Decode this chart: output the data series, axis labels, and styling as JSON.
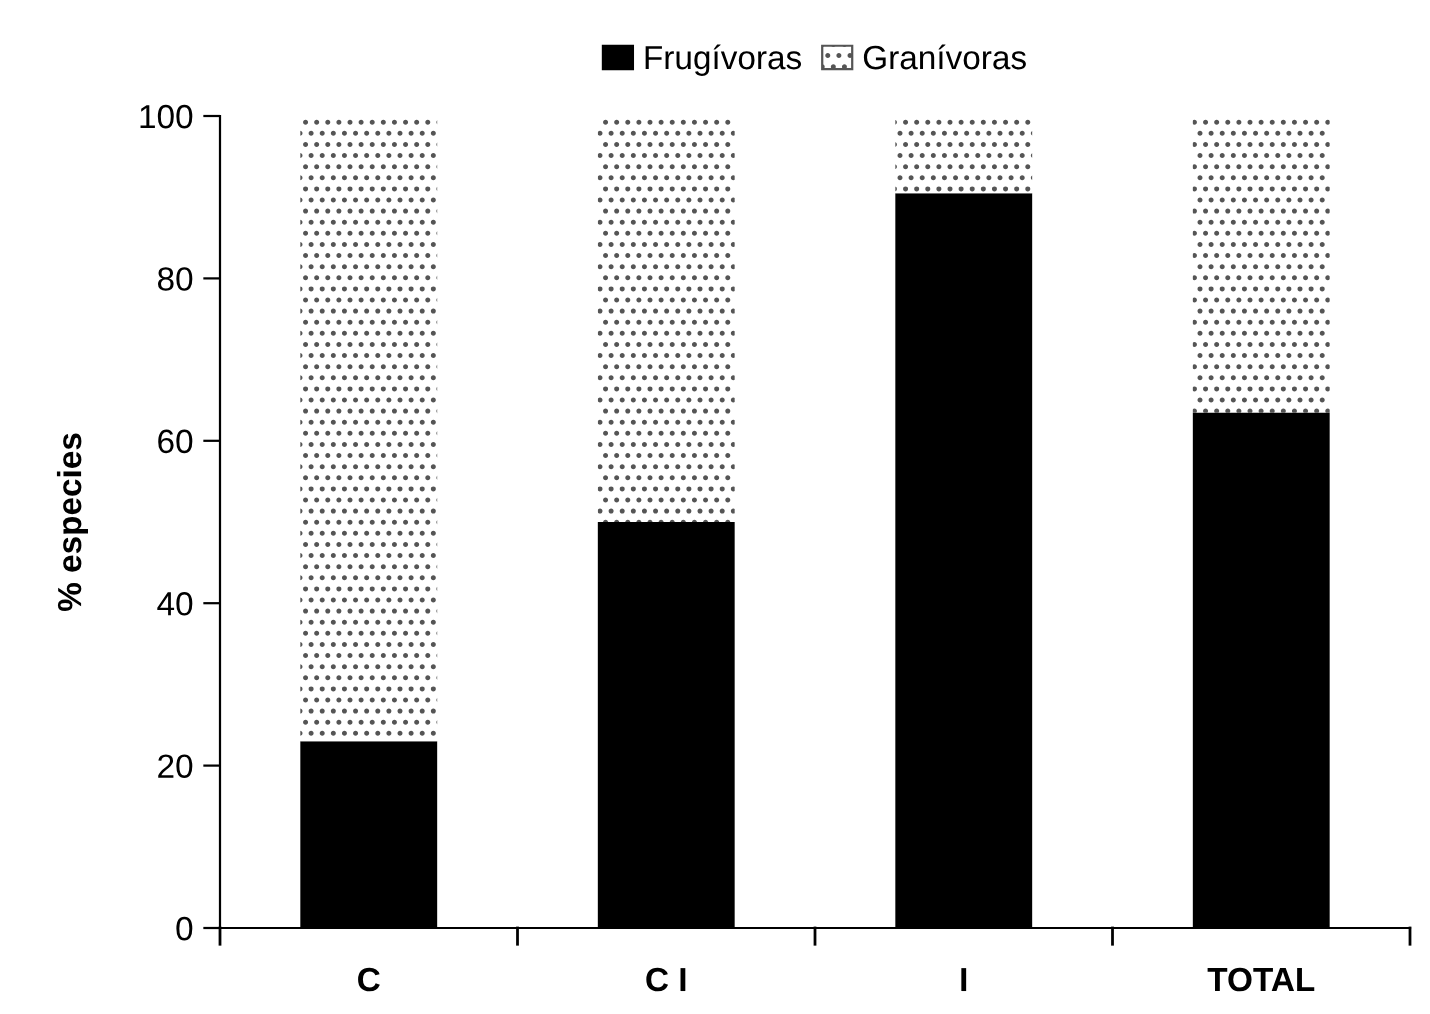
{
  "chart_data": {
    "type": "bar",
    "stacked": true,
    "ylabel": "% especies",
    "categories": [
      "C",
      "C I",
      "I",
      "TOTAL"
    ],
    "series": [
      {
        "name": "Frugívoras",
        "color": "#000000",
        "values": [
          23,
          50,
          90.5,
          63.5
        ]
      },
      {
        "name": "Granívoras",
        "color": "#ffffff",
        "values": [
          77,
          50,
          9.5,
          36.5
        ]
      }
    ],
    "ylim": [
      0,
      100
    ],
    "yticks": [
      0,
      20,
      40,
      60,
      80,
      100
    ],
    "grid": false,
    "legend": "top"
  }
}
